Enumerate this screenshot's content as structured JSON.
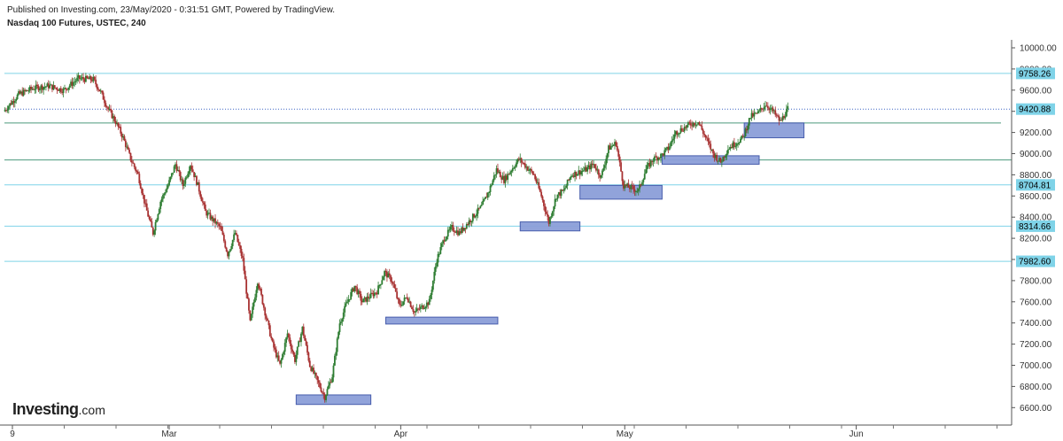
{
  "header": {
    "published": "Published on Investing.com, 23/May/2020 - 0:31:51 GMT, Powered by TradingView.",
    "title": "Nasdaq 100 Futures, USTEC, 240"
  },
  "logo": {
    "main": "Investing",
    "suffix": ".com"
  },
  "colors": {
    "up_candle": "#2e7d32",
    "down_candle": "#a83232",
    "level_line": "#7fd3e8",
    "trend_line": "#4c9a7e",
    "current_price_line": "#3b63c4",
    "support_box_fill": "#8c9fd9",
    "support_box_stroke": "#3e55a8",
    "level_tag_bg": "#7fd3e8",
    "current_tag_bg": "#7fd3e8"
  },
  "chart_data": {
    "type": "candlestick",
    "ylim": [
      6500,
      10100
    ],
    "y_ticks": [
      "10000.00",
      "9800.00",
      "9600.00",
      "9400.00",
      "9200.00",
      "9000.00",
      "8800.00",
      "8600.00",
      "8400.00",
      "8200.00",
      "8000.00",
      "7800.00",
      "7600.00",
      "7400.00",
      "7200.00",
      "7000.00",
      "6800.00",
      "6600.00"
    ],
    "x_labels": [
      {
        "label": "9",
        "date": "2020-02-09"
      },
      {
        "label": "Mar",
        "date": "2020-03-01"
      },
      {
        "label": "Apr",
        "date": "2020-04-01"
      },
      {
        "label": "May",
        "date": "2020-05-01"
      },
      {
        "label": "Jun",
        "date": "2020-06-01"
      }
    ],
    "horizontal_levels": [
      {
        "value": 9758.26,
        "label": "9758.26"
      },
      {
        "value": 8704.81,
        "label": "8704.81"
      },
      {
        "value": 8314.66,
        "label": "8314.66"
      },
      {
        "value": 7982.6,
        "label": "7982.60"
      }
    ],
    "trend_lines": [
      {
        "value": 9290
      },
      {
        "value": 8940
      }
    ],
    "current_price": {
      "value": 9420.88,
      "label": "9420.88"
    },
    "support_zones": [
      {
        "from": "2020-03-18",
        "to": "2020-03-28",
        "low": 6630,
        "high": 6720
      },
      {
        "from": "2020-03-30",
        "to": "2020-04-14",
        "low": 7390,
        "high": 7455
      },
      {
        "from": "2020-04-17",
        "to": "2020-04-25",
        "low": 8270,
        "high": 8355
      },
      {
        "from": "2020-04-25",
        "to": "2020-05-06",
        "low": 8570,
        "high": 8700
      },
      {
        "from": "2020-05-06",
        "to": "2020-05-19",
        "low": 8900,
        "high": 8980
      },
      {
        "from": "2020-05-17",
        "to": "2020-05-25",
        "low": 9150,
        "high": 9290
      }
    ],
    "price_path": [
      {
        "date": "2020-02-08",
        "value": 9400
      },
      {
        "date": "2020-02-10",
        "value": 9560
      },
      {
        "date": "2020-02-12",
        "value": 9620
      },
      {
        "date": "2020-02-14",
        "value": 9640
      },
      {
        "date": "2020-02-16",
        "value": 9600
      },
      {
        "date": "2020-02-18",
        "value": 9710
      },
      {
        "date": "2020-02-20",
        "value": 9700
      },
      {
        "date": "2020-02-21",
        "value": 9580
      },
      {
        "date": "2020-02-22",
        "value": 9420
      },
      {
        "date": "2020-02-23",
        "value": 9300
      },
      {
        "date": "2020-02-24",
        "value": 9150
      },
      {
        "date": "2020-02-25",
        "value": 8950
      },
      {
        "date": "2020-02-26",
        "value": 8800
      },
      {
        "date": "2020-02-27",
        "value": 8500
      },
      {
        "date": "2020-02-28",
        "value": 8250
      },
      {
        "date": "2020-02-29",
        "value": 8550
      },
      {
        "date": "2020-03-01",
        "value": 8700
      },
      {
        "date": "2020-03-02",
        "value": 8900
      },
      {
        "date": "2020-03-03",
        "value": 8700
      },
      {
        "date": "2020-03-04",
        "value": 8900
      },
      {
        "date": "2020-03-05",
        "value": 8700
      },
      {
        "date": "2020-03-06",
        "value": 8450
      },
      {
        "date": "2020-03-08",
        "value": 8300
      },
      {
        "date": "2020-03-09",
        "value": 8050
      },
      {
        "date": "2020-03-10",
        "value": 8250
      },
      {
        "date": "2020-03-11",
        "value": 8000
      },
      {
        "date": "2020-03-12",
        "value": 7400
      },
      {
        "date": "2020-03-13",
        "value": 7800
      },
      {
        "date": "2020-03-15",
        "value": 7200
      },
      {
        "date": "2020-03-16",
        "value": 7000
      },
      {
        "date": "2020-03-17",
        "value": 7300
      },
      {
        "date": "2020-03-18",
        "value": 7050
      },
      {
        "date": "2020-03-19",
        "value": 7350
      },
      {
        "date": "2020-03-20",
        "value": 7000
      },
      {
        "date": "2020-03-22",
        "value": 6700
      },
      {
        "date": "2020-03-23",
        "value": 6900
      },
      {
        "date": "2020-03-24",
        "value": 7400
      },
      {
        "date": "2020-03-25",
        "value": 7600
      },
      {
        "date": "2020-03-26",
        "value": 7750
      },
      {
        "date": "2020-03-27",
        "value": 7600
      },
      {
        "date": "2020-03-29",
        "value": 7700
      },
      {
        "date": "2020-03-30",
        "value": 7880
      },
      {
        "date": "2020-03-31",
        "value": 7800
      },
      {
        "date": "2020-04-01",
        "value": 7560
      },
      {
        "date": "2020-04-02",
        "value": 7650
      },
      {
        "date": "2020-04-03",
        "value": 7500
      },
      {
        "date": "2020-04-05",
        "value": 7600
      },
      {
        "date": "2020-04-06",
        "value": 8000
      },
      {
        "date": "2020-04-07",
        "value": 8200
      },
      {
        "date": "2020-04-08",
        "value": 8300
      },
      {
        "date": "2020-04-09",
        "value": 8250
      },
      {
        "date": "2020-04-12",
        "value": 8500
      },
      {
        "date": "2020-04-13",
        "value": 8650
      },
      {
        "date": "2020-04-14",
        "value": 8850
      },
      {
        "date": "2020-04-15",
        "value": 8750
      },
      {
        "date": "2020-04-16",
        "value": 8850
      },
      {
        "date": "2020-04-17",
        "value": 8950
      },
      {
        "date": "2020-04-19",
        "value": 8800
      },
      {
        "date": "2020-04-20",
        "value": 8600
      },
      {
        "date": "2020-04-21",
        "value": 8350
      },
      {
        "date": "2020-04-22",
        "value": 8600
      },
      {
        "date": "2020-04-23",
        "value": 8650
      },
      {
        "date": "2020-04-24",
        "value": 8800
      },
      {
        "date": "2020-04-26",
        "value": 8850
      },
      {
        "date": "2020-04-27",
        "value": 8900
      },
      {
        "date": "2020-04-28",
        "value": 8780
      },
      {
        "date": "2020-04-29",
        "value": 9050
      },
      {
        "date": "2020-04-30",
        "value": 9100
      },
      {
        "date": "2020-05-01",
        "value": 8700
      },
      {
        "date": "2020-05-03",
        "value": 8650
      },
      {
        "date": "2020-05-04",
        "value": 8850
      },
      {
        "date": "2020-05-05",
        "value": 8950
      },
      {
        "date": "2020-05-06",
        "value": 8980
      },
      {
        "date": "2020-05-07",
        "value": 9050
      },
      {
        "date": "2020-05-08",
        "value": 9200
      },
      {
        "date": "2020-05-10",
        "value": 9280
      },
      {
        "date": "2020-05-11",
        "value": 9300
      },
      {
        "date": "2020-05-12",
        "value": 9150
      },
      {
        "date": "2020-05-13",
        "value": 9000
      },
      {
        "date": "2020-05-14",
        "value": 8920
      },
      {
        "date": "2020-05-15",
        "value": 9050
      },
      {
        "date": "2020-05-17",
        "value": 9150
      },
      {
        "date": "2020-05-18",
        "value": 9350
      },
      {
        "date": "2020-05-19",
        "value": 9380
      },
      {
        "date": "2020-05-20",
        "value": 9470
      },
      {
        "date": "2020-05-21",
        "value": 9400
      },
      {
        "date": "2020-05-22",
        "value": 9300
      },
      {
        "date": "2020-05-23",
        "value": 9420
      }
    ]
  }
}
